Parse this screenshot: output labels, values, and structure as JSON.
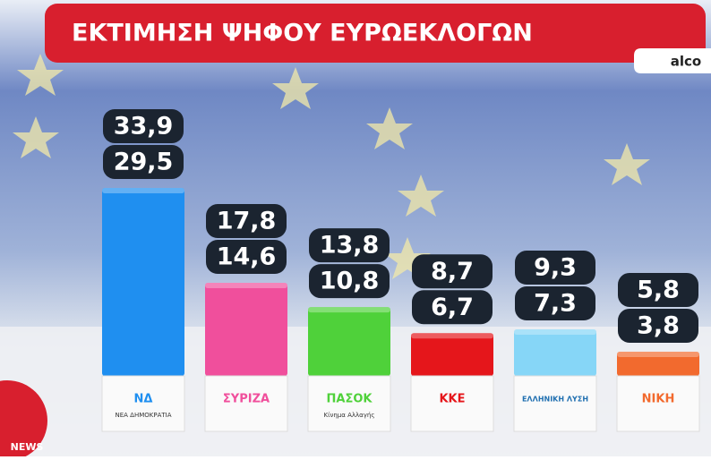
{
  "chart_data": {
    "type": "bar",
    "title": "ΕΚΤΙΜΗΣΗ ΨΗΦΟΥ ΕΥΡΩΕΚΛΟΓΩΝ",
    "source": "alco",
    "categories": [
      "ΝΔ",
      "ΣΥΡΙΖΑ",
      "ΠΑΣΟΚ",
      "ΚΚΕ",
      "ΕΛΛΗΝΙΚΗ ΛΥΣΗ",
      "ΝΙΚΗ"
    ],
    "sublabels": [
      "ΝΕΑ ΔΗΜΟΚΡΑΤΙΑ",
      null,
      "Κίνημα Αλλαγής",
      null,
      null,
      null
    ],
    "colors": [
      "#1f8ff0",
      "#f04f9c",
      "#4fd13a",
      "#e5161b",
      "#86d6f7",
      "#f26a2e"
    ],
    "series": [
      {
        "values": [
          33.9,
          17.8,
          13.8,
          8.7,
          9.3,
          5.8
        ],
        "value_labels": [
          "33,9",
          "17,8",
          "13,8",
          "8,7",
          "9,3",
          "5,8"
        ]
      },
      {
        "values": [
          29.5,
          14.6,
          10.8,
          6.7,
          7.3,
          3.8
        ],
        "value_labels": [
          "29,5",
          "14,6",
          "10,8",
          "6,7",
          "7,3",
          "3,8"
        ]
      }
    ]
  },
  "channel": "NEWS"
}
